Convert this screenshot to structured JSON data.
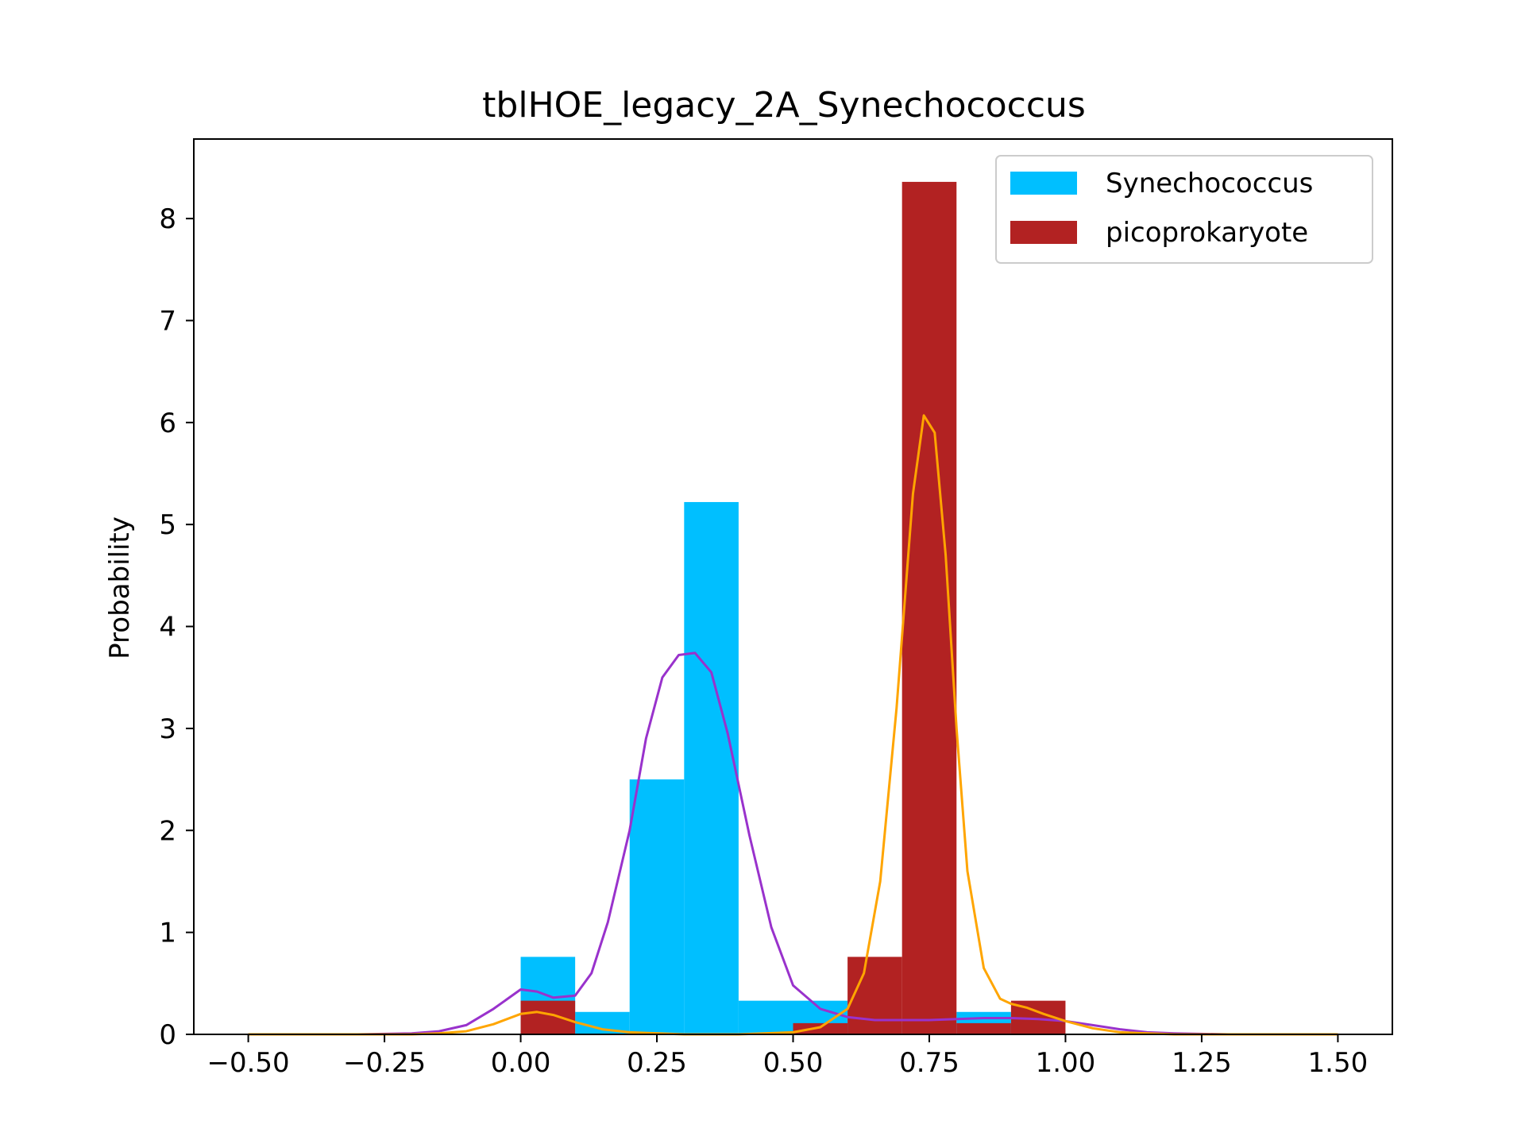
{
  "chart_data": {
    "type": "bar",
    "title": "tblHOE_legacy_2A_Synechococcus",
    "xlabel": "",
    "ylabel": "Probability",
    "xlim": [
      -0.6,
      1.6
    ],
    "ylim": [
      0,
      8.78
    ],
    "xticks": [
      -0.5,
      -0.25,
      0.0,
      0.25,
      0.5,
      0.75,
      1.0,
      1.25,
      1.5
    ],
    "xtick_labels": [
      "−0.50",
      "−0.25",
      "0.00",
      "0.25",
      "0.50",
      "0.75",
      "1.00",
      "1.25",
      "1.50"
    ],
    "yticks": [
      0,
      1,
      2,
      3,
      4,
      5,
      6,
      7,
      8
    ],
    "ytick_labels": [
      "0",
      "1",
      "2",
      "3",
      "4",
      "5",
      "6",
      "7",
      "8"
    ],
    "grid": false,
    "legend_position": "top-right",
    "bin_edges": [
      0.0,
      0.1,
      0.2,
      0.3,
      0.4,
      0.5,
      0.6,
      0.7,
      0.8,
      0.9,
      1.0
    ],
    "series": [
      {
        "name": "Synechococcus",
        "kind": "histogram",
        "color": "#00bfff",
        "values": [
          0.76,
          0.22,
          2.5,
          5.22,
          0.33,
          0.33,
          0.11,
          0.0,
          0.22,
          0.0
        ]
      },
      {
        "name": "picoprokaryote",
        "kind": "histogram",
        "color": "#b22222",
        "values": [
          0.33,
          0.0,
          0.0,
          0.0,
          0.0,
          0.11,
          0.76,
          8.36,
          0.11,
          0.33
        ]
      }
    ],
    "density_curves": [
      {
        "color": "#9932cc",
        "x": [
          -0.5,
          -0.3,
          -0.2,
          -0.15,
          -0.1,
          -0.05,
          0.0,
          0.03,
          0.06,
          0.1,
          0.13,
          0.16,
          0.2,
          0.23,
          0.26,
          0.29,
          0.32,
          0.35,
          0.38,
          0.42,
          0.46,
          0.5,
          0.55,
          0.6,
          0.65,
          0.7,
          0.75,
          0.8,
          0.85,
          0.9,
          0.95,
          1.0,
          1.05,
          1.1,
          1.15,
          1.2,
          1.3,
          1.5
        ],
        "y": [
          0.0,
          0.0,
          0.01,
          0.03,
          0.09,
          0.25,
          0.44,
          0.42,
          0.36,
          0.38,
          0.6,
          1.1,
          2.0,
          2.9,
          3.5,
          3.72,
          3.74,
          3.55,
          2.95,
          1.95,
          1.05,
          0.48,
          0.25,
          0.17,
          0.14,
          0.14,
          0.14,
          0.15,
          0.16,
          0.16,
          0.15,
          0.13,
          0.09,
          0.05,
          0.02,
          0.01,
          0.0,
          0.0
        ]
      },
      {
        "color": "#ffa500",
        "x": [
          -0.5,
          -0.2,
          -0.15,
          -0.1,
          -0.05,
          0.0,
          0.03,
          0.06,
          0.1,
          0.15,
          0.2,
          0.3,
          0.4,
          0.5,
          0.55,
          0.6,
          0.63,
          0.66,
          0.69,
          0.72,
          0.74,
          0.76,
          0.78,
          0.8,
          0.82,
          0.85,
          0.88,
          0.9,
          0.93,
          0.96,
          1.0,
          1.05,
          1.1,
          1.15,
          1.2,
          1.3,
          1.5
        ],
        "y": [
          0.0,
          0.0,
          0.01,
          0.03,
          0.1,
          0.2,
          0.22,
          0.19,
          0.12,
          0.05,
          0.02,
          0.0,
          0.0,
          0.02,
          0.07,
          0.25,
          0.6,
          1.5,
          3.2,
          5.3,
          6.07,
          5.9,
          4.7,
          3.0,
          1.6,
          0.65,
          0.35,
          0.3,
          0.26,
          0.2,
          0.13,
          0.06,
          0.02,
          0.01,
          0.0,
          0.0,
          0.0
        ]
      }
    ]
  }
}
